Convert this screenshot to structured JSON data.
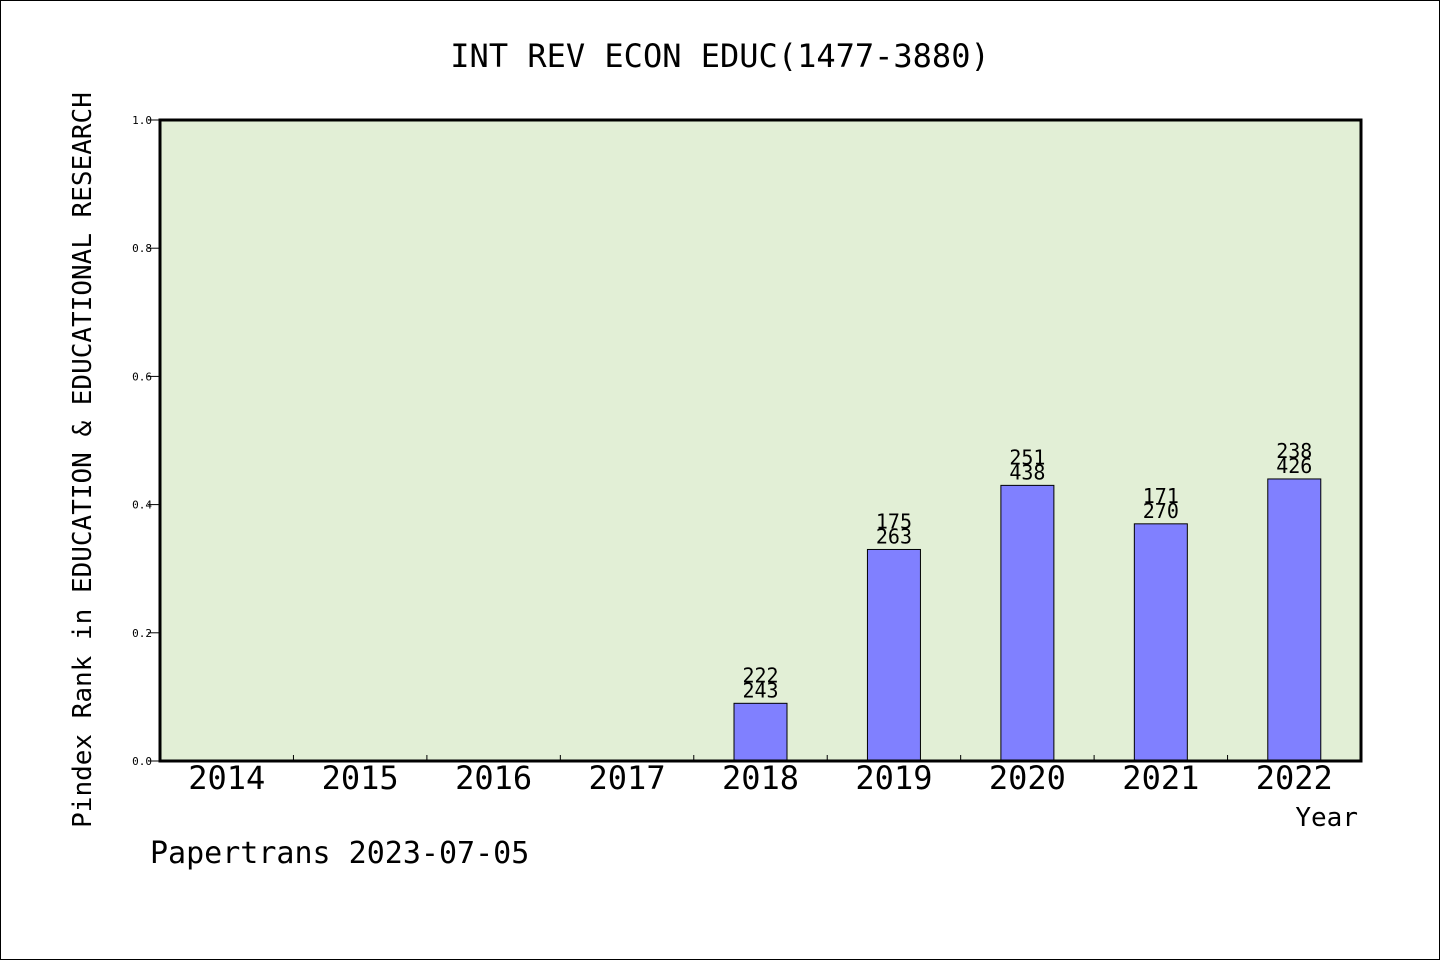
{
  "chart_data": {
    "type": "bar",
    "title": "INT REV ECON EDUC(1477-3880)",
    "xlabel": "Year",
    "ylabel": "Pindex Rank in EDUCATION & EDUCATIONAL RESEARCH",
    "categories": [
      "2014",
      "2015",
      "2016",
      "2017",
      "2018",
      "2019",
      "2020",
      "2021",
      "2022"
    ],
    "values": [
      null,
      null,
      null,
      null,
      0.09,
      0.33,
      0.43,
      0.37,
      0.44
    ],
    "bar_labels_top": [
      "",
      "",
      "",
      "",
      "222",
      "175",
      "251",
      "171",
      "238"
    ],
    "bar_labels_bottom": [
      "",
      "",
      "",
      "",
      "243",
      "263",
      "438",
      "270",
      "426"
    ],
    "ylim": [
      0,
      1.0
    ],
    "yticks": [
      "0.0",
      "0.2",
      "0.4",
      "0.6",
      "0.8",
      "1.0"
    ],
    "grid": false,
    "colors": {
      "plot_background": "#e2efd6",
      "bar_fill": "#8080ff",
      "bar_stroke": "#000000"
    }
  },
  "footer": {
    "text": "Papertrans 2023-07-05"
  }
}
